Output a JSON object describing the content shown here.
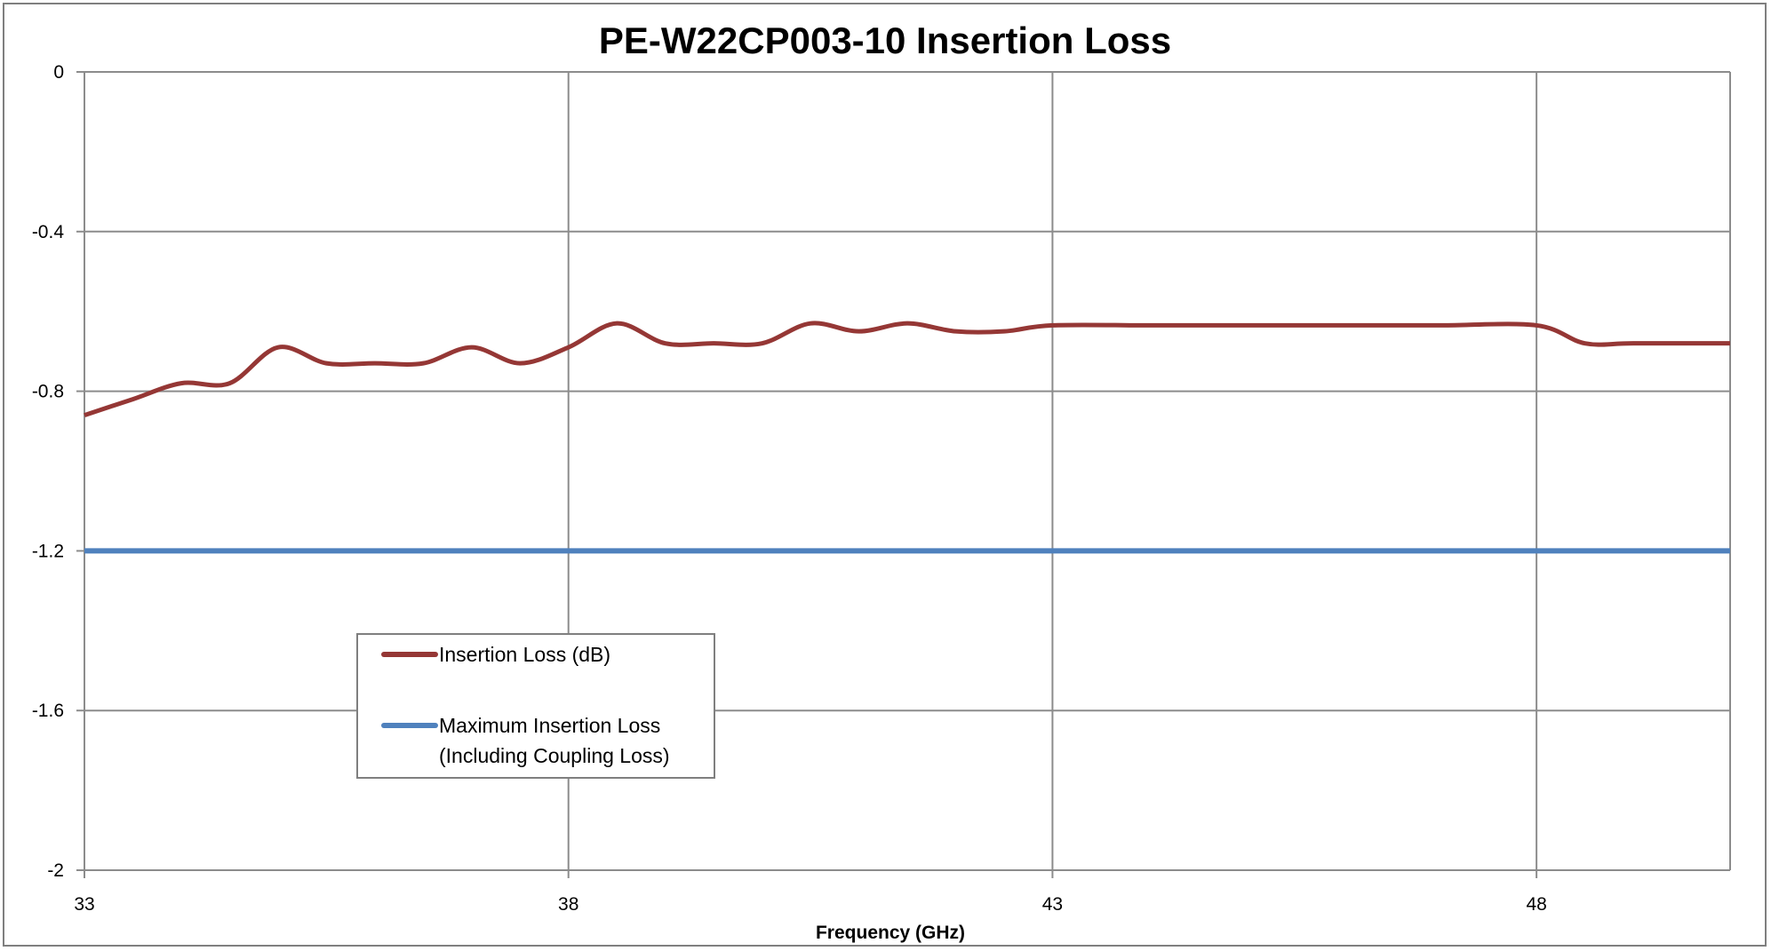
{
  "chart_data": {
    "type": "line",
    "title": "PE-W22CP003-10 Insertion Loss",
    "xlabel": "Frequency (GHz)",
    "ylabel": "",
    "xlim": [
      33,
      50
    ],
    "ylim": [
      -2,
      0
    ],
    "x_ticks": [
      33,
      38,
      43,
      48
    ],
    "y_ticks": [
      0,
      -0.4,
      -0.8,
      -1.2,
      -1.6,
      -2
    ],
    "x_tick_labels": [
      "33",
      "38",
      "43",
      "48"
    ],
    "y_tick_labels": [
      "0",
      "-0.4",
      "-0.8",
      "-1.2",
      "-1.6",
      "-2"
    ],
    "grid": true,
    "legend_position": "lower-left",
    "series": [
      {
        "name": "Insertion Loss (dB)",
        "color": "#953735",
        "x": [
          33.0,
          33.5,
          34.0,
          34.5,
          35.0,
          35.5,
          36.0,
          36.5,
          37.0,
          37.5,
          38.0,
          38.5,
          39.0,
          39.5,
          40.0,
          40.5,
          41.0,
          41.5,
          42.0,
          42.5,
          43.0,
          44.0,
          45.0,
          46.0,
          47.0,
          48.0,
          48.5,
          49.0,
          50.0
        ],
        "y": [
          -0.86,
          -0.82,
          -0.78,
          -0.78,
          -0.69,
          -0.73,
          -0.73,
          -0.73,
          -0.69,
          -0.73,
          -0.69,
          -0.63,
          -0.68,
          -0.68,
          -0.68,
          -0.63,
          -0.65,
          -0.63,
          -0.65,
          -0.65,
          -0.635,
          -0.635,
          -0.635,
          -0.635,
          -0.635,
          -0.635,
          -0.68,
          -0.68,
          -0.68
        ]
      },
      {
        "name": "Maximum Insertion Loss (Including Coupling Loss)",
        "legend_lines": [
          "Maximum Insertion Loss",
          "(Including Coupling Loss)"
        ],
        "color": "#4f81bd",
        "x": [
          33,
          50
        ],
        "y": [
          -1.2,
          -1.2
        ]
      }
    ]
  }
}
